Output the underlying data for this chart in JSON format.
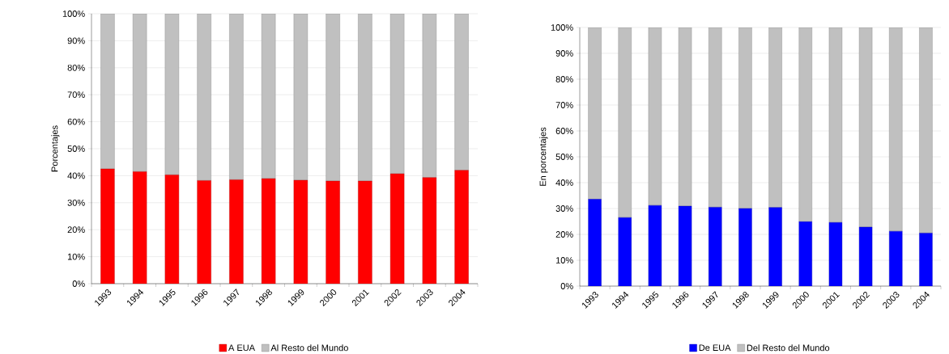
{
  "chart_data": [
    {
      "type": "bar",
      "stacked": true,
      "ylabel": "Porcentajes",
      "categories": [
        "1993",
        "1994",
        "1995",
        "1996",
        "1997",
        "1998",
        "1999",
        "2000",
        "2001",
        "2002",
        "2003",
        "2004"
      ],
      "series": [
        {
          "name": "A EUA",
          "color": "#ff0000",
          "values": [
            42.5,
            41.5,
            40.3,
            38.2,
            38.5,
            38.9,
            38.3,
            38.0,
            38.0,
            40.7,
            39.3,
            42.0
          ]
        },
        {
          "name": "Al Resto del Mundo",
          "color": "#c0c0c0",
          "values": [
            57.5,
            58.5,
            59.7,
            61.8,
            61.5,
            61.1,
            61.7,
            62.0,
            62.0,
            59.3,
            60.7,
            58.0
          ]
        }
      ],
      "ylim": [
        0,
        100
      ],
      "yticks": [
        {
          "value": 0,
          "label": "0%"
        },
        {
          "value": 10,
          "label": "10%"
        },
        {
          "value": 20,
          "label": "20%"
        },
        {
          "value": 30,
          "label": "30%"
        },
        {
          "value": 40,
          "label": "40%"
        },
        {
          "value": 50,
          "label": "50%"
        },
        {
          "value": 60,
          "label": "60%"
        },
        {
          "value": 70,
          "label": "70%"
        },
        {
          "value": 80,
          "label": "80%"
        },
        {
          "value": 90,
          "label": "90%"
        },
        {
          "value": 100,
          "label": "100%"
        }
      ],
      "grid": "y",
      "legend": "bottom"
    },
    {
      "type": "bar",
      "stacked": true,
      "ylabel": "En porcentajes",
      "categories": [
        "1993",
        "1994",
        "1995",
        "1996",
        "1997",
        "1998",
        "1999",
        "2000",
        "2001",
        "2002",
        "2003",
        "2004"
      ],
      "series": [
        {
          "name": "De EUA",
          "color": "#0000ff",
          "values": [
            33.6,
            26.5,
            31.2,
            30.9,
            30.5,
            30.0,
            30.4,
            24.9,
            24.6,
            22.8,
            21.2,
            20.5
          ]
        },
        {
          "name": "Del Resto del Mundo",
          "color": "#c0c0c0",
          "values": [
            66.4,
            73.5,
            68.8,
            69.1,
            69.5,
            70.0,
            69.6,
            75.1,
            75.4,
            77.2,
            78.8,
            79.5
          ]
        }
      ],
      "ylim": [
        0,
        100
      ],
      "yticks": [
        {
          "value": 0,
          "label": "0%"
        },
        {
          "value": 10,
          "label": "10%"
        },
        {
          "value": 20,
          "label": "20%"
        },
        {
          "value": 30,
          "label": "30%"
        },
        {
          "value": 40,
          "label": "40%"
        },
        {
          "value": 50,
          "label": "50%"
        },
        {
          "value": 60,
          "label": "60%"
        },
        {
          "value": 70,
          "label": "70%"
        },
        {
          "value": 80,
          "label": "80%"
        },
        {
          "value": 90,
          "label": "90%"
        },
        {
          "value": 100,
          "label": "100%"
        }
      ],
      "grid": "y",
      "legend": "bottom"
    }
  ]
}
